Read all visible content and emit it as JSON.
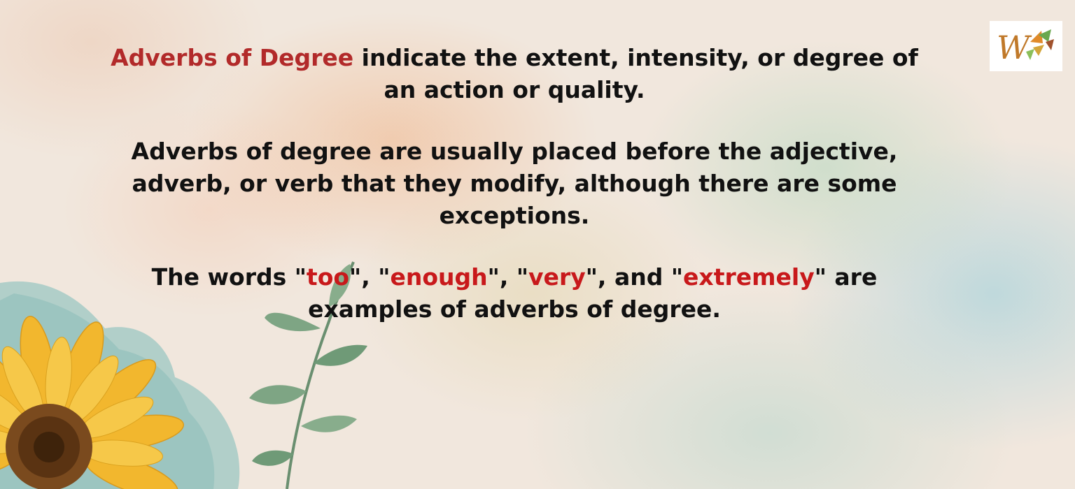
{
  "content": {
    "para1": {
      "highlight": "Adverbs of Degree",
      "rest": " indicate the extent, intensity, or degree of an action or quality."
    },
    "para2": {
      "text": "Adverbs of degree are usually placed before the adjective, adverb, or verb that they modify, although there are some exceptions."
    },
    "para3": {
      "p1": "The words \"",
      "w1": "too",
      "p2": "\", \"",
      "w2": "enough",
      "p3": "\", \"",
      "w3": "very",
      "p4": "\", and \"",
      "w4": "extremely",
      "p5": "\" are examples of adverbs of degree."
    }
  },
  "logo": {
    "letter": "W"
  },
  "colors": {
    "title_highlight": "#b22a2a",
    "word_highlight": "#c8191b",
    "body_text": "#111111"
  },
  "decor": {
    "icons": [
      "sunflower-icon",
      "leaf-branch-icon",
      "teal-watercolor-blob"
    ]
  }
}
